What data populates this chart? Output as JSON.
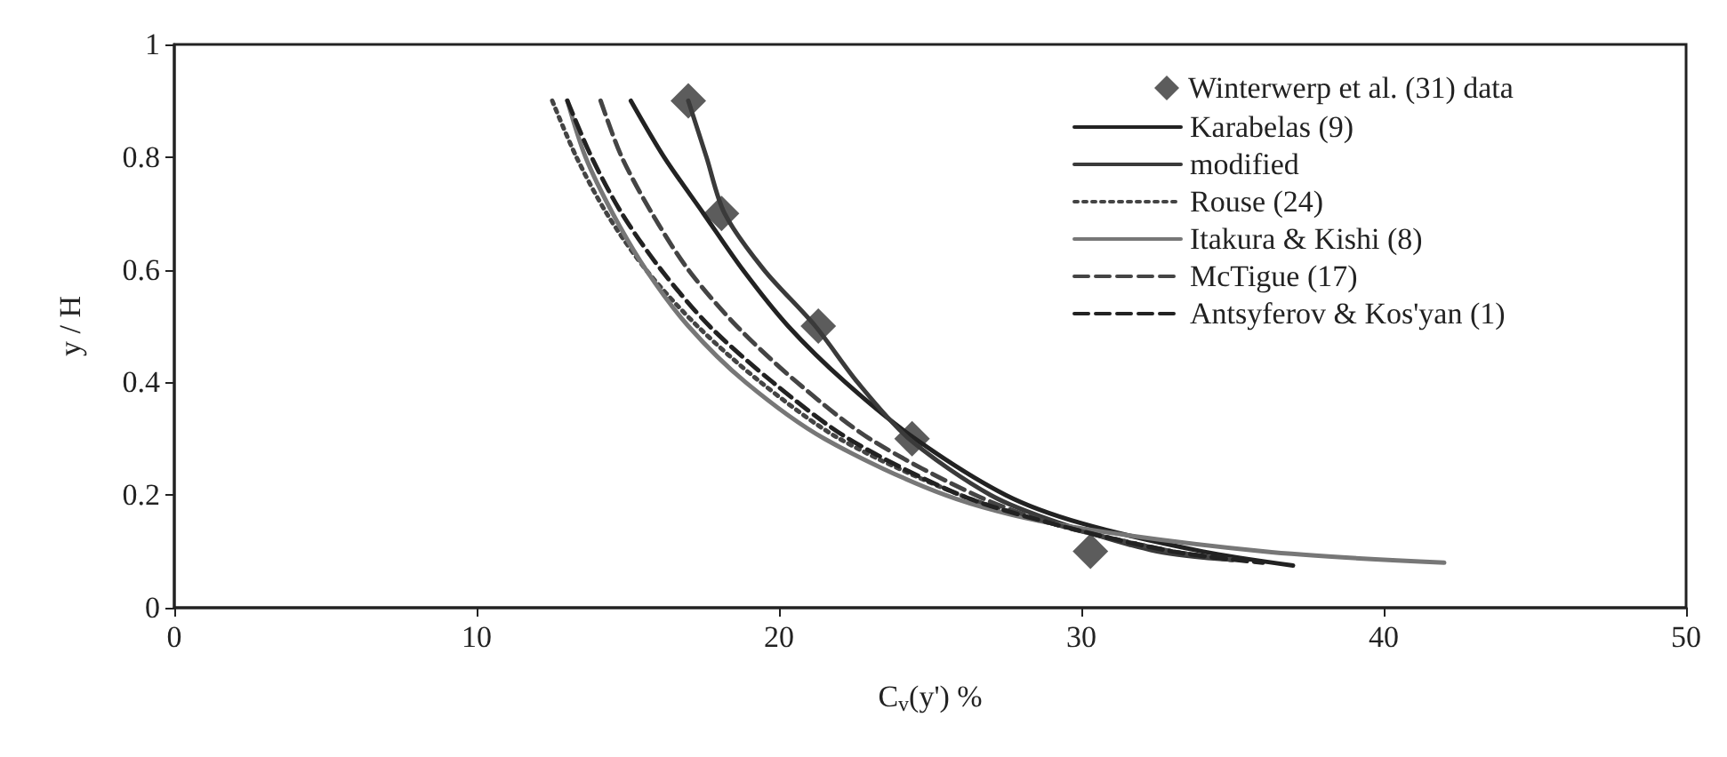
{
  "chart_data": {
    "type": "line",
    "xlabel": "C$_{v}$(y') %",
    "ylabel": "y / H",
    "xlim": [
      0,
      50
    ],
    "xticks": [
      0,
      10,
      20,
      30,
      40,
      50
    ],
    "ylim": [
      0,
      1
    ],
    "yticks": [
      0,
      0.2,
      0.4,
      0.6,
      0.8,
      1
    ],
    "grid": false,
    "legend": "top right",
    "series": [
      {
        "name": "Winterwerp et al. (31) data",
        "type": "scatter",
        "marker": "diamond",
        "color": "#333333",
        "x": [
          17,
          18.1,
          21.3,
          24.4,
          30.3
        ],
        "values": [
          0.9,
          0.7,
          0.5,
          0.3,
          0.1
        ]
      },
      {
        "name": "Karabelas (9)",
        "color": "#222222",
        "line_style": "solid",
        "x": [
          15.1,
          16.2,
          17.5,
          18.8,
          20.3,
          22.2,
          24.5,
          27.5,
          30,
          34,
          37
        ],
        "values": [
          0.9,
          0.8,
          0.7,
          0.6,
          0.5,
          0.4,
          0.3,
          0.2,
          0.15,
          0.1,
          0.075
        ]
      },
      {
        "name": "modified",
        "color": "#3a3a3a",
        "line_style": "solid",
        "x": [
          17,
          17.6,
          18.2,
          19.5,
          21.2,
          22.6,
          24.3,
          27,
          29.3,
          32.5,
          35
        ],
        "values": [
          0.9,
          0.8,
          0.7,
          0.6,
          0.5,
          0.4,
          0.3,
          0.2,
          0.15,
          0.1,
          0.085
        ]
      },
      {
        "name": "Rouse (24)",
        "color": "#444444",
        "line_style": "dotted",
        "x": [
          12.5,
          13.3,
          14.3,
          15.6,
          17.3,
          19.4,
          22,
          26,
          29,
          33,
          35
        ],
        "values": [
          0.9,
          0.8,
          0.7,
          0.6,
          0.5,
          0.4,
          0.3,
          0.2,
          0.15,
          0.1,
          0.085
        ]
      },
      {
        "name": "Itakura & Kishi (8)",
        "color": "#777777",
        "line_style": "solid",
        "x": [
          13,
          13.6,
          14.5,
          15.6,
          17,
          18.9,
          21.5,
          25.5,
          29,
          36,
          42
        ],
        "values": [
          0.9,
          0.8,
          0.7,
          0.6,
          0.5,
          0.4,
          0.3,
          0.2,
          0.15,
          0.1,
          0.08
        ]
      },
      {
        "name": "McTigue (17)",
        "color": "#444444",
        "line_style": "dashed",
        "x": [
          14.1,
          14.8,
          15.8,
          17,
          18.6,
          20.6,
          23,
          26.5,
          29,
          33,
          35
        ],
        "values": [
          0.9,
          0.8,
          0.7,
          0.6,
          0.5,
          0.4,
          0.3,
          0.2,
          0.15,
          0.1,
          0.085
        ]
      },
      {
        "name": "Antsyferov & Kos'yan (1)",
        "color": "#222222",
        "line_style": "dashed",
        "x": [
          13,
          13.8,
          14.8,
          16.1,
          17.7,
          19.8,
          22.3,
          26,
          29,
          33,
          36
        ],
        "values": [
          0.9,
          0.8,
          0.7,
          0.6,
          0.5,
          0.4,
          0.3,
          0.2,
          0.15,
          0.1,
          0.08
        ]
      }
    ]
  }
}
